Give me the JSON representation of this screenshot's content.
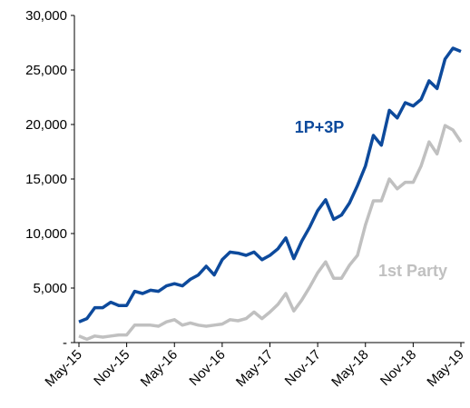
{
  "chart_data": {
    "type": "line",
    "categories": [
      "May-15",
      null,
      null,
      null,
      null,
      null,
      "Nov-15",
      null,
      null,
      null,
      null,
      null,
      "May-16",
      null,
      null,
      null,
      null,
      null,
      "Nov-16",
      null,
      null,
      null,
      null,
      null,
      "May-17",
      null,
      null,
      null,
      null,
      null,
      "Nov-17",
      null,
      null,
      null,
      null,
      null,
      "May-18",
      null,
      null,
      null,
      null,
      null,
      "Nov-18",
      null,
      null,
      null,
      null,
      null,
      "May-19"
    ],
    "series": [
      {
        "name": "1P+3P",
        "color": "#0d4a9c",
        "values": [
          1900,
          2200,
          3200,
          3200,
          3700,
          3400,
          3400,
          4700,
          4500,
          4800,
          4700,
          5200,
          5400,
          5200,
          5800,
          6200,
          7000,
          6200,
          7600,
          8300,
          8200,
          8000,
          8300,
          7600,
          8000,
          8600,
          9600,
          7700,
          9300,
          10600,
          12100,
          13100,
          11300,
          11700,
          12800,
          14400,
          16200,
          19000,
          18100,
          21300,
          20600,
          22000,
          21700,
          22300,
          24000,
          23300,
          26000,
          27000,
          26700
        ]
      },
      {
        "name": "1st Party",
        "color": "#c0c0c0",
        "values": [
          600,
          300,
          600,
          500,
          600,
          700,
          700,
          1600,
          1600,
          1600,
          1500,
          1900,
          2100,
          1600,
          1800,
          1600,
          1500,
          1600,
          1700,
          2100,
          2000,
          2200,
          2800,
          2200,
          2800,
          3500,
          4500,
          2900,
          3900,
          5100,
          6400,
          7400,
          5900,
          5900,
          7100,
          8000,
          10800,
          13000,
          13000,
          15000,
          14100,
          14700,
          14700,
          16200,
          18400,
          17300,
          19900,
          19500,
          18400
        ]
      }
    ],
    "ylim": [
      0,
      30000
    ],
    "yticks": [
      {
        "value": 0,
        "label": "-"
      },
      {
        "value": 5000,
        "label": "5,000"
      },
      {
        "value": 10000,
        "label": "10,000"
      },
      {
        "value": 15000,
        "label": "15,000"
      },
      {
        "value": 20000,
        "label": "20,000"
      },
      {
        "value": 25000,
        "label": "25,000"
      },
      {
        "value": 30000,
        "label": "30,000"
      }
    ],
    "grid": false
  }
}
